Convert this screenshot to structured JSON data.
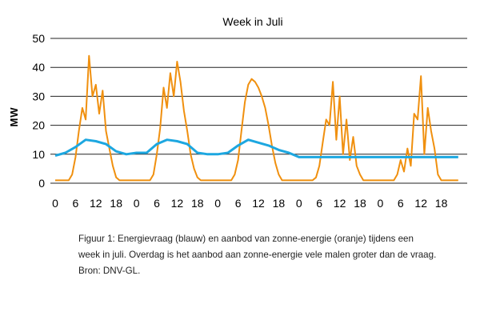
{
  "chart_data": {
    "type": "line",
    "title": "Week in Juli",
    "ylabel": "MW",
    "xlabel": "",
    "ylim": [
      0,
      50
    ],
    "yticks": [
      0,
      10,
      20,
      30,
      40,
      50
    ],
    "xticks": [
      "0",
      "6",
      "12",
      "18",
      "0",
      "6",
      "12",
      "18",
      "0",
      "6",
      "12",
      "18",
      "0",
      "6",
      "12",
      "18",
      "0",
      "6",
      "12",
      "18"
    ],
    "grid": true,
    "legend": "none",
    "colors": {
      "demand": "#1da7e0",
      "solar": "#f0900f",
      "grid": "#222222"
    },
    "series": [
      {
        "key": "demand",
        "hours": [
          0,
          3,
          6,
          9,
          12,
          15,
          18,
          21,
          24,
          27,
          30,
          33,
          36,
          39,
          42,
          45,
          48,
          51,
          54,
          57,
          60,
          63,
          66,
          69,
          72,
          75,
          78,
          81,
          84,
          87,
          90,
          93,
          96,
          99,
          102,
          105,
          108,
          111,
          114,
          117,
          119
        ],
        "values": [
          9.5,
          10.5,
          12.5,
          15,
          14.5,
          13.5,
          11,
          10,
          10.5,
          10.5,
          13.5,
          15,
          14.5,
          13.5,
          10.5,
          10,
          10,
          10.5,
          13,
          15,
          14,
          13,
          11.5,
          10.5,
          9,
          9,
          9,
          9,
          9,
          9,
          9,
          9,
          9,
          9,
          9,
          9,
          9,
          9,
          9,
          9,
          9
        ]
      },
      {
        "key": "solar",
        "hours": [
          0,
          4,
          5,
          6,
          7,
          8,
          9,
          10,
          11,
          12,
          13,
          14,
          15,
          16,
          17,
          18,
          19,
          20,
          24,
          28,
          29,
          30,
          31,
          32,
          33,
          34,
          35,
          36,
          37,
          38,
          39,
          40,
          41,
          42,
          43,
          44,
          48,
          52,
          53,
          54,
          55,
          56,
          57,
          58,
          59,
          60,
          61,
          62,
          63,
          64,
          65,
          66,
          67,
          68,
          72,
          76,
          77,
          78,
          79,
          80,
          81,
          82,
          83,
          84,
          85,
          86,
          87,
          88,
          89,
          90,
          91,
          92,
          96,
          100,
          101,
          102,
          103,
          104,
          105,
          106,
          107,
          108,
          109,
          110,
          111,
          112,
          113,
          114,
          115,
          116,
          119
        ],
        "values": [
          1,
          1,
          3,
          9,
          18,
          26,
          22,
          44,
          30,
          34,
          24,
          32,
          18,
          12,
          6,
          2,
          1,
          1,
          1,
          1,
          3,
          10,
          19,
          33,
          26,
          38,
          30,
          42,
          35,
          25,
          18,
          10,
          5,
          2,
          1,
          1,
          1,
          1,
          3,
          8,
          18,
          28,
          34,
          36,
          35,
          33,
          30,
          26,
          20,
          13,
          7,
          3,
          1,
          1,
          1,
          1,
          2,
          6,
          14,
          22,
          20,
          35,
          15,
          30,
          10,
          22,
          8,
          16,
          6,
          3,
          1,
          1,
          1,
          1,
          3,
          8,
          4,
          12,
          6,
          24,
          22,
          37,
          10,
          26,
          18,
          12,
          3,
          1,
          1,
          1,
          1
        ]
      }
    ]
  },
  "caption": {
    "line1": "Figuur 1: Energievraag (blauw) en aanbod van zonne-energie (oranje) tijdens een",
    "line2": "week in juli. Overdag is het aanbod aan zonne-energie vele malen groter dan de vraag.",
    "line3": "Bron: DNV-GL."
  }
}
